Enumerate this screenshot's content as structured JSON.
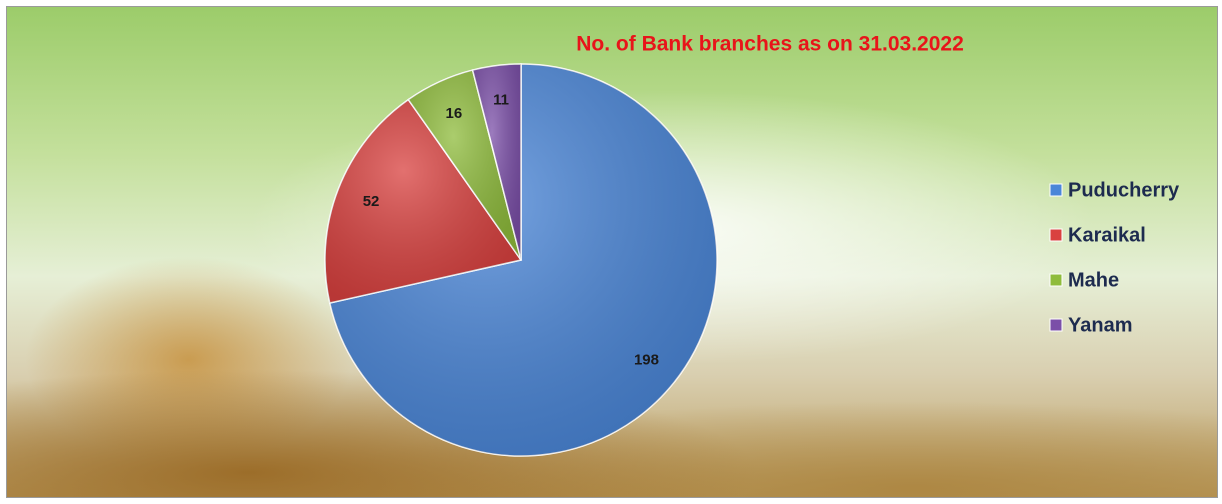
{
  "chart_data": {
    "type": "pie",
    "title": "No. of Bank branches as on 31.03.2022",
    "categories": [
      "Puducherry",
      "Karaikal",
      "Mahe",
      "Yanam"
    ],
    "values": [
      198,
      52,
      16,
      11
    ],
    "colors": [
      "#4a86d8",
      "#d9413f",
      "#8fbc3c",
      "#7b4fa8"
    ],
    "legend": "right"
  }
}
